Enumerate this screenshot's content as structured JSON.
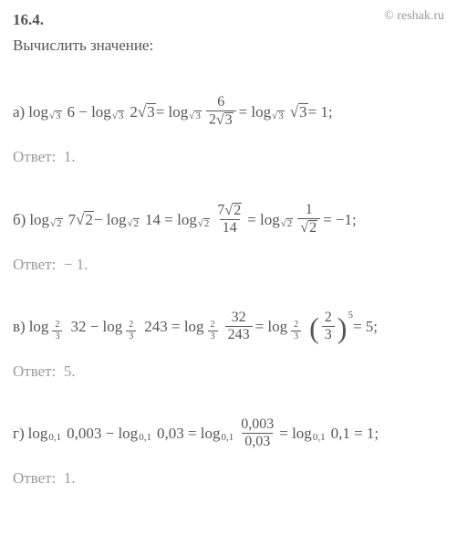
{
  "watermark": "© reshak.ru",
  "problem_number": "16.4.",
  "prompt": "Вычислить значение:",
  "text_color": "#555555",
  "muted_color": "#999999",
  "background_color": "#ffffff",
  "fontsize_body": 17,
  "fontsize_sub": 11,
  "solutions": [
    {
      "label": "а)",
      "parts": {
        "p1": "log",
        "p2": "6 − log",
        "p3": "2",
        "p4": " = log",
        "p5": " = log",
        "p6": " = 1;"
      },
      "sub_sqrt": "3",
      "frac": {
        "num": "6",
        "den_coef": "2",
        "den_sqrt": "3"
      },
      "final_sqrt": "3",
      "answer_label": "Ответ:",
      "answer_value": "1."
    },
    {
      "label": "б)",
      "parts": {
        "p1": "log",
        "p2": "7",
        "p3": " − log",
        "p4": "14 = log",
        "p5": " = log",
        "p6": " = −1;"
      },
      "sub_sqrt": "2",
      "frac1": {
        "num_coef": "7",
        "num_sqrt": "2",
        "den": "14"
      },
      "frac2": {
        "num": "1",
        "den_sqrt": "2"
      },
      "answer_label": "Ответ:",
      "answer_value": "− 1."
    },
    {
      "label": "в)",
      "parts": {
        "p1": "log",
        "p2": "32 − log",
        "p3": "243 = log",
        "p4": " = log",
        "p5": " = 5;"
      },
      "sub_frac": {
        "num": "2",
        "den": "3"
      },
      "frac1": {
        "num": "32",
        "den": "243"
      },
      "paren_frac": {
        "num": "2",
        "den": "3"
      },
      "exp": "5",
      "answer_label": "Ответ:",
      "answer_value": "5."
    },
    {
      "label": "г)",
      "parts": {
        "p1": "log",
        "p2": "0,003 − log",
        "p3": "0,03 = log",
        "p4": " = log",
        "p5": "0,1 = 1;"
      },
      "sub": "0,1",
      "frac": {
        "num": "0,003",
        "den": "0,03"
      },
      "answer_label": "Ответ:",
      "answer_value": "1."
    }
  ]
}
